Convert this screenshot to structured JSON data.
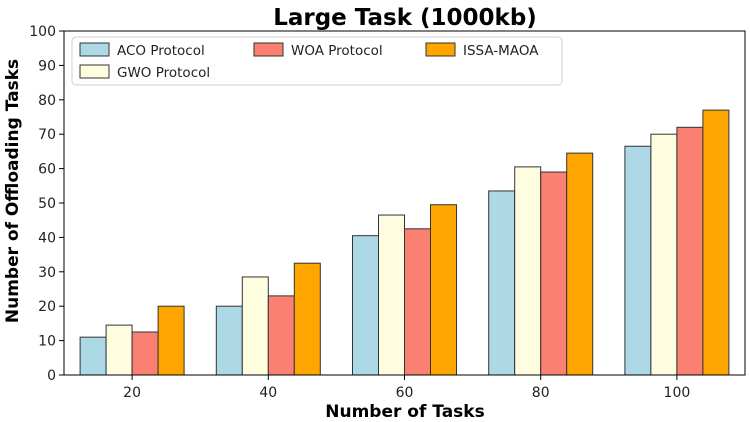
{
  "chart_data": {
    "type": "bar",
    "title": "Large Task (1000kb)",
    "xlabel": "Number of Tasks",
    "ylabel": "Number of Offloading Tasks",
    "categories": [
      "20",
      "40",
      "60",
      "80",
      "100"
    ],
    "ylim": [
      0,
      100
    ],
    "yticks": [
      0,
      10,
      20,
      30,
      40,
      50,
      60,
      70,
      80,
      90,
      100
    ],
    "grid": false,
    "legend_position": "top-left",
    "series": [
      {
        "name": "ACO Protocol",
        "color": "#add8e6",
        "values": [
          11,
          20,
          40.5,
          53.5,
          66.5
        ]
      },
      {
        "name": "GWO Protocol",
        "color": "#fffde0",
        "values": [
          14.5,
          28.5,
          46.5,
          60.5,
          70
        ]
      },
      {
        "name": "WOA Protocol",
        "color": "#fa8072",
        "values": [
          12.5,
          23,
          42.5,
          59,
          72
        ]
      },
      {
        "name": "ISSA-MAOA",
        "color": "#ffa500",
        "values": [
          20,
          32.5,
          49.5,
          64.5,
          77
        ]
      }
    ]
  }
}
